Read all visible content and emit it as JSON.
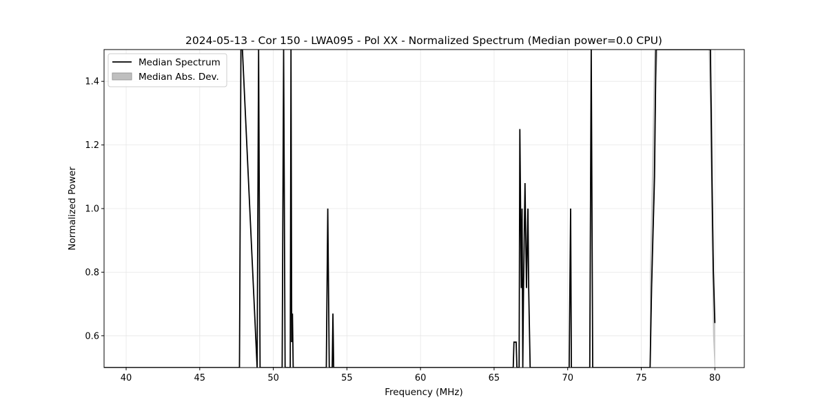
{
  "chart_data": {
    "type": "line",
    "title": "2024-05-13 - Cor 150 - LWA095 - Pol XX - Normalized Spectrum (Median power=0.0 CPU)",
    "xlabel": "Frequency (MHz)",
    "ylabel": "Normalized Power",
    "xlim": [
      38.5,
      82.0
    ],
    "ylim": [
      0.5,
      1.5
    ],
    "grid": true,
    "legend_position": "upper-left",
    "x_ticks": [
      40,
      45,
      50,
      55,
      60,
      65,
      70,
      75,
      80
    ],
    "x_tick_labels": [
      "40",
      "45",
      "50",
      "55",
      "60",
      "65",
      "70",
      "75",
      "80"
    ],
    "y_ticks": [
      0.6,
      0.8,
      1.0,
      1.2,
      1.4
    ],
    "y_tick_labels": [
      "0.6",
      "0.8",
      "1.0",
      "1.2",
      "1.4"
    ],
    "legend": [
      {
        "label": "Median Spectrum",
        "kind": "line",
        "color": "#000000"
      },
      {
        "label": "Median Abs. Dev.",
        "kind": "band",
        "color": "#bfbfbf"
      }
    ],
    "series": [
      {
        "name": "Median Spectrum",
        "color": "#000000",
        "x": [
          38.5,
          47.7,
          47.8,
          47.9,
          48.9,
          49.0,
          49.1,
          50.6,
          50.7,
          50.8,
          51.15,
          51.2,
          51.25,
          51.3,
          51.35,
          51.4,
          51.5,
          53.6,
          53.7,
          53.8,
          54.0,
          54.05,
          54.1,
          66.3,
          66.35,
          66.5,
          66.55,
          66.7,
          66.75,
          66.85,
          66.9,
          66.95,
          67.0,
          67.1,
          67.2,
          67.3,
          67.35,
          67.45,
          67.55,
          67.6,
          70.1,
          70.2,
          70.25,
          70.3,
          71.5,
          71.6,
          71.7,
          71.8,
          75.6,
          75.7,
          75.9,
          76.0,
          76.1,
          79.6,
          79.7,
          79.8,
          79.9,
          80.0
        ],
        "y": [
          0.5,
          0.5,
          1.5,
          1.5,
          0.5,
          1.5,
          0.5,
          0.5,
          1.5,
          0.5,
          0.5,
          1.5,
          0.58,
          0.67,
          0.5,
          0.5,
          0.5,
          0.5,
          1.0,
          0.5,
          0.5,
          0.67,
          0.5,
          0.5,
          0.58,
          0.58,
          0.5,
          0.5,
          1.25,
          0.75,
          1.0,
          0.5,
          0.75,
          1.08,
          0.75,
          1.0,
          0.75,
          0.5,
          0.5,
          0.5,
          0.5,
          1.0,
          0.5,
          0.5,
          0.5,
          1.5,
          0.5,
          0.5,
          0.5,
          0.75,
          1.1,
          1.5,
          1.5,
          1.5,
          1.5,
          1.1,
          0.8,
          0.64
        ]
      }
    ],
    "mad_band": {
      "name": "Median Abs. Dev.",
      "color": "#bfbfbf",
      "x": [
        75.6,
        75.7,
        75.8,
        75.9,
        76.0,
        76.1,
        79.6,
        79.7,
        79.8,
        79.9,
        80.0
      ],
      "lower": [
        0.5,
        0.7,
        0.9,
        1.05,
        1.4,
        1.5,
        1.5,
        1.3,
        0.9,
        0.6,
        0.5
      ],
      "upper": [
        0.8,
        1.0,
        1.25,
        1.5,
        1.5,
        1.5,
        1.5,
        1.5,
        1.3,
        0.85,
        0.64
      ]
    }
  }
}
